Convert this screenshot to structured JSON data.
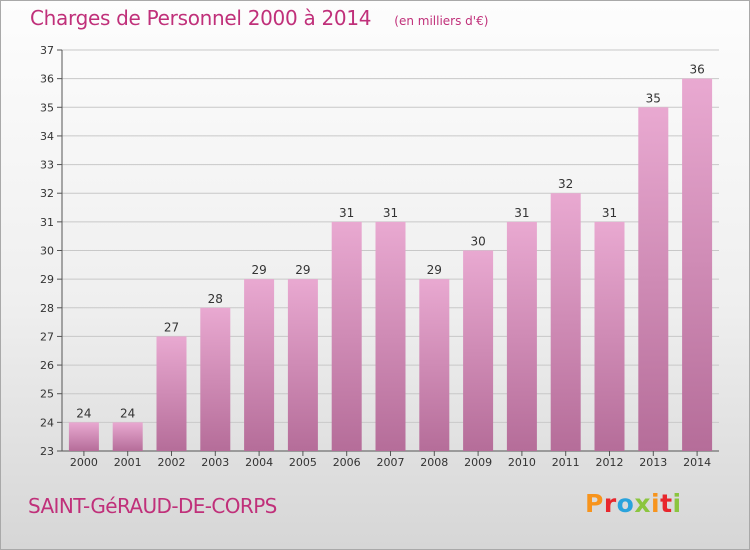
{
  "header": {
    "title": "Charges de Personnel 2000 à 2014",
    "subtitle": "(en milliers d'€)"
  },
  "footer": {
    "place": "SAINT-GéRAUD-DE-CORPS",
    "brand": "Proxiti",
    "brand_colors": [
      "#f7941d",
      "#e8272d",
      "#2aa3dc",
      "#8bc53f",
      "#f7941d",
      "#e8272d",
      "#8bc53f"
    ]
  },
  "colors": {
    "bar_top": "#e9a9d1",
    "bar_bottom": "#b56d99",
    "text": "#c0307a",
    "grid": "#c8c8c8"
  },
  "chart_data": {
    "type": "bar",
    "categories": [
      "2000",
      "2001",
      "2002",
      "2003",
      "2004",
      "2005",
      "2006",
      "2007",
      "2008",
      "2009",
      "2010",
      "2011",
      "2012",
      "2013",
      "2014"
    ],
    "values": [
      24,
      24,
      27,
      28,
      29,
      29,
      31,
      31,
      29,
      30,
      31,
      32,
      31,
      35,
      36
    ],
    "title": "Charges de Personnel 2000 à 2014",
    "subtitle": "(en milliers d'€)",
    "xlabel": "",
    "ylabel": "",
    "ylim": [
      23,
      37
    ],
    "yticks": [
      23,
      24,
      25,
      26,
      27,
      28,
      29,
      30,
      31,
      32,
      33,
      34,
      35,
      36,
      37
    ],
    "grid": true,
    "data_labels": true
  }
}
